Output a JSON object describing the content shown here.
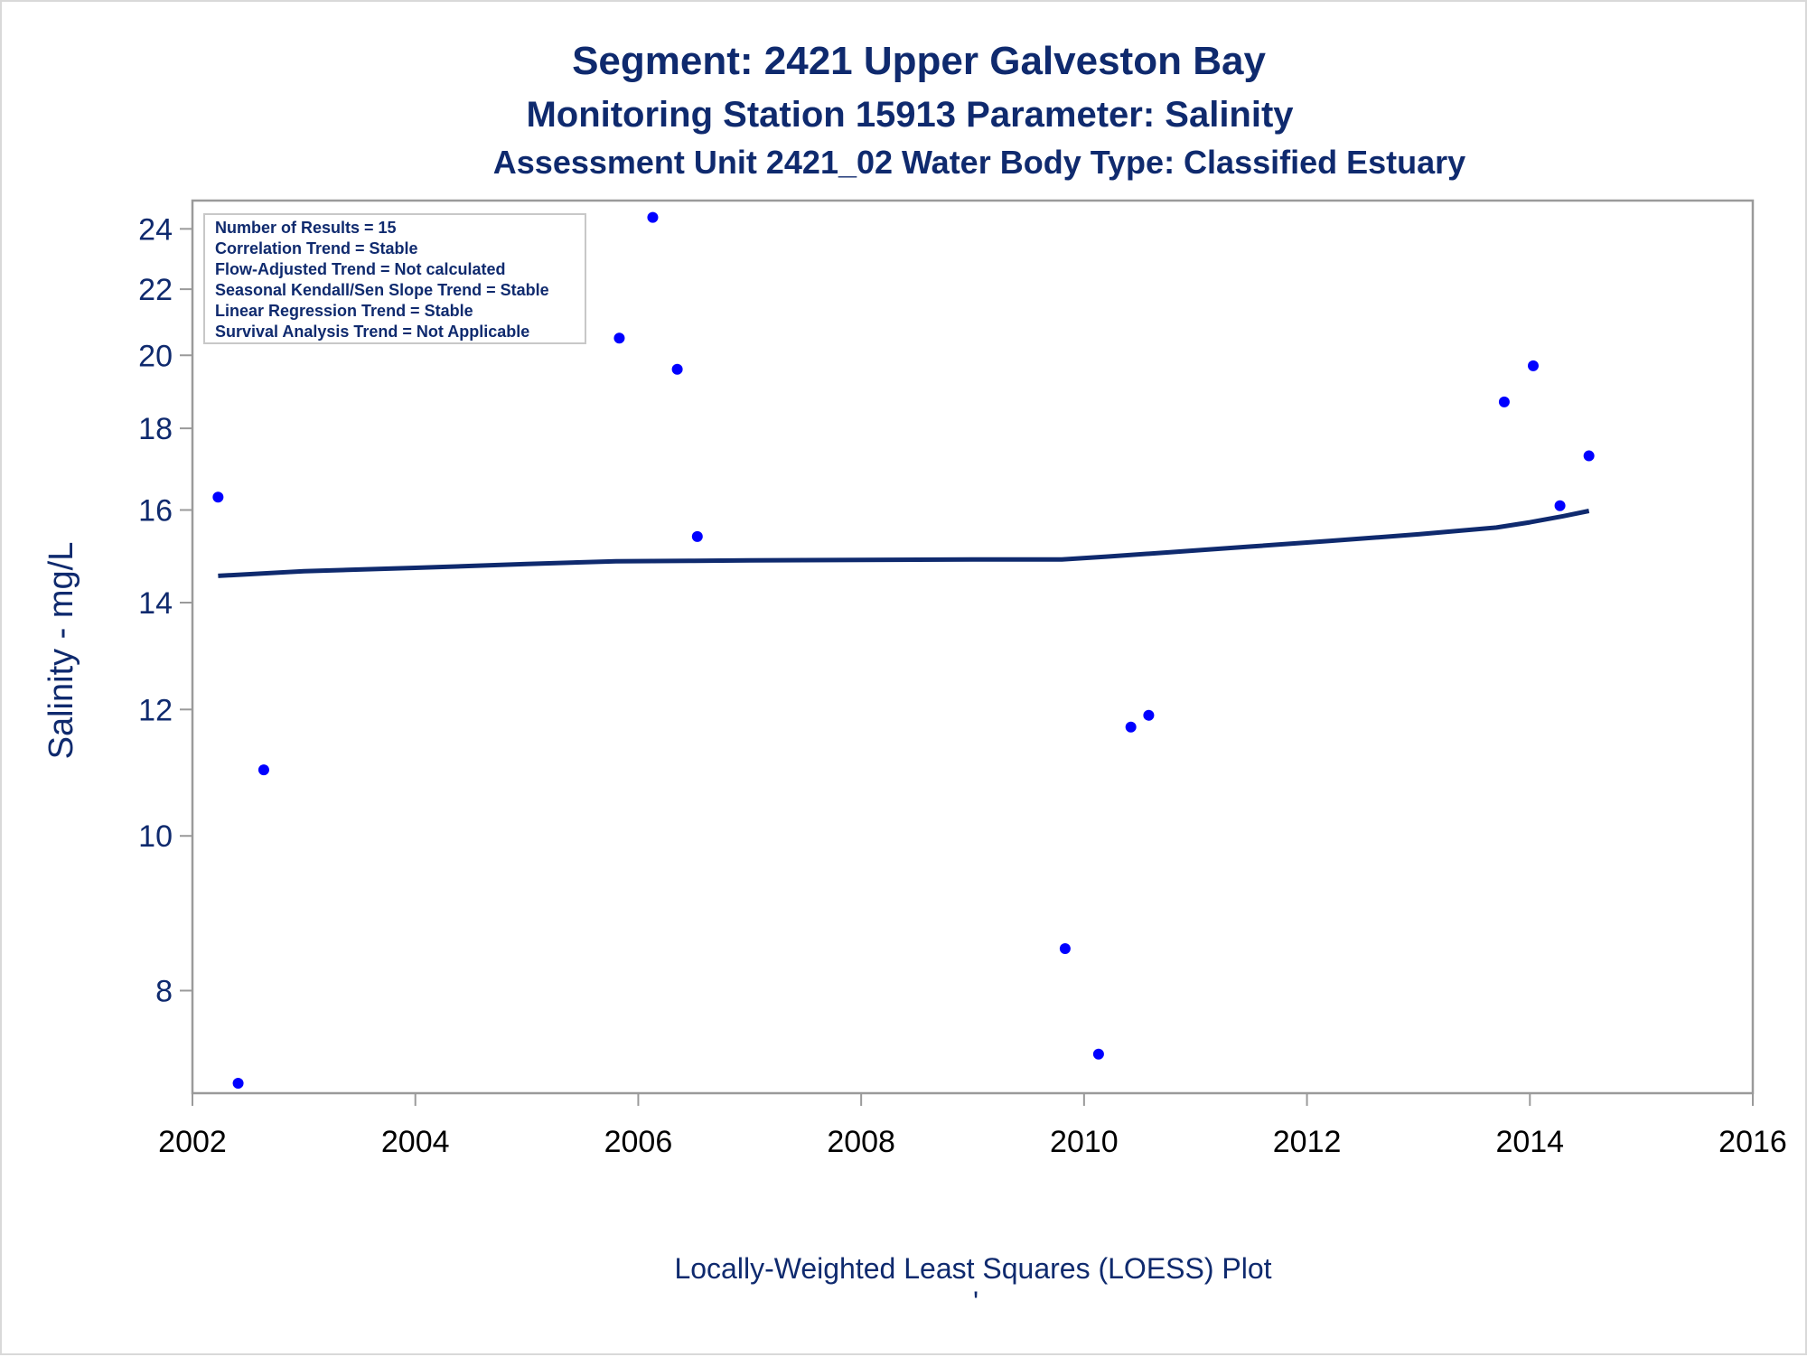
{
  "titles": {
    "line1": "Segment: 2421  Upper Galveston Bay",
    "line2": "Monitoring Station 15913 Parameter: Salinity",
    "line3": "Assessment Unit 2421_02   Water Body Type: Classified Estuary"
  },
  "stats_box": [
    "Number of Results = 15",
    "Correlation Trend = Stable",
    "Flow-Adjusted Trend = Not calculated",
    "Seasonal Kendall/Sen Slope Trend = Stable",
    "Linear Regression Trend = Stable",
    "Survival Analysis Trend = Not Applicable"
  ],
  "footnote_mark": "'",
  "colors": {
    "text": "#0f2a6e",
    "points": "#0000ff",
    "loess": "#0f2a6e",
    "axis": "#9a9a9a"
  },
  "chart_data": {
    "type": "scatter",
    "ylabel": "Salinity - mg/L",
    "xlabel": "Locally-Weighted Least Squares (LOESS) Plot",
    "y_scale": "log",
    "xlim": [
      2002,
      2016
    ],
    "ylim": [
      6.9,
      25
    ],
    "xticks": [
      "2002",
      "2004",
      "2006",
      "2008",
      "2010",
      "2012",
      "2014",
      "2016"
    ],
    "yticks": [
      "8",
      "10",
      "12",
      "14",
      "16",
      "18",
      "20",
      "22",
      "24"
    ],
    "points": [
      {
        "x": 2002.23,
        "y": 16.3
      },
      {
        "x": 2002.41,
        "y": 7.0
      },
      {
        "x": 2002.64,
        "y": 11.0
      },
      {
        "x": 2005.83,
        "y": 20.5
      },
      {
        "x": 2006.13,
        "y": 24.4
      },
      {
        "x": 2006.35,
        "y": 19.6
      },
      {
        "x": 2006.53,
        "y": 15.4
      },
      {
        "x": 2009.83,
        "y": 8.5
      },
      {
        "x": 2010.13,
        "y": 7.3
      },
      {
        "x": 2010.42,
        "y": 11.7
      },
      {
        "x": 2010.58,
        "y": 11.9
      },
      {
        "x": 2013.77,
        "y": 18.7
      },
      {
        "x": 2014.03,
        "y": 19.7
      },
      {
        "x": 2014.27,
        "y": 16.1
      },
      {
        "x": 2014.53,
        "y": 17.3
      }
    ],
    "loess": {
      "x": [
        2002.23,
        2003.0,
        2004.0,
        2005.0,
        2005.8,
        2006.5,
        2007.0,
        2008.0,
        2009.0,
        2009.8,
        2010.2,
        2010.8,
        2011.5,
        2012.2,
        2013.0,
        2013.7,
        2014.0,
        2014.3,
        2014.53
      ],
      "y": [
        14.55,
        14.65,
        14.72,
        14.8,
        14.86,
        14.87,
        14.88,
        14.89,
        14.9,
        14.9,
        14.96,
        15.06,
        15.18,
        15.3,
        15.45,
        15.6,
        15.72,
        15.86,
        15.98
      ]
    }
  }
}
